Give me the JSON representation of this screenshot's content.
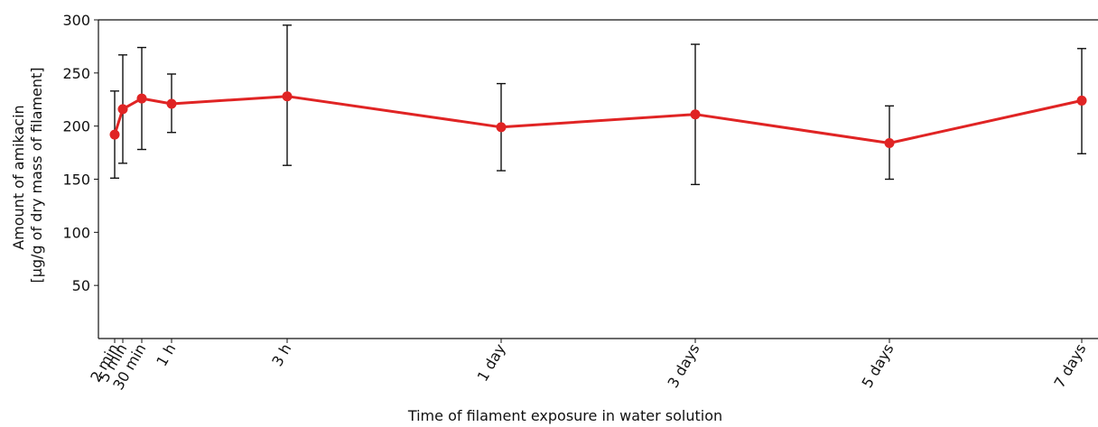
{
  "chart_data": {
    "type": "line",
    "xlabel": "Time of filament exposure in water solution",
    "ylabel_lines": [
      "Amount of amikacin",
      "[µg/g of dry mass of filament]"
    ],
    "ylim": [
      0,
      300
    ],
    "yticks": [
      50,
      100,
      150,
      200,
      250,
      300
    ],
    "grid": false,
    "series_color": "#e02424",
    "error_bar_color": "#111111",
    "x_unit": "hours",
    "xlim": [
      0,
      168
    ],
    "series": [
      {
        "points": [
          {
            "label": "2 min",
            "x": 0.0333,
            "y": 192,
            "err_low": 151,
            "err_high": 233
          },
          {
            "label": "5 min",
            "x": 0.0833,
            "y": 216,
            "err_low": 165,
            "err_high": 267
          },
          {
            "label": "30 min",
            "x": 0.5,
            "y": 226,
            "err_low": 178,
            "err_high": 274
          },
          {
            "label": "1 h",
            "x": 1,
            "y": 221,
            "err_low": 194,
            "err_high": 249
          },
          {
            "label": "3 h",
            "x": 3,
            "y": 228,
            "err_low": 163,
            "err_high": 295
          },
          {
            "label": "1 day",
            "x": 24,
            "y": 199,
            "err_low": 158,
            "err_high": 240
          },
          {
            "label": "3 days",
            "x": 72,
            "y": 211,
            "err_low": 145,
            "err_high": 277
          },
          {
            "label": "5 days",
            "x": 120,
            "y": 184,
            "err_low": 150,
            "err_high": 219
          },
          {
            "label": "7 days",
            "x": 168,
            "y": 224,
            "err_low": 174,
            "err_high": 273
          }
        ]
      }
    ]
  }
}
